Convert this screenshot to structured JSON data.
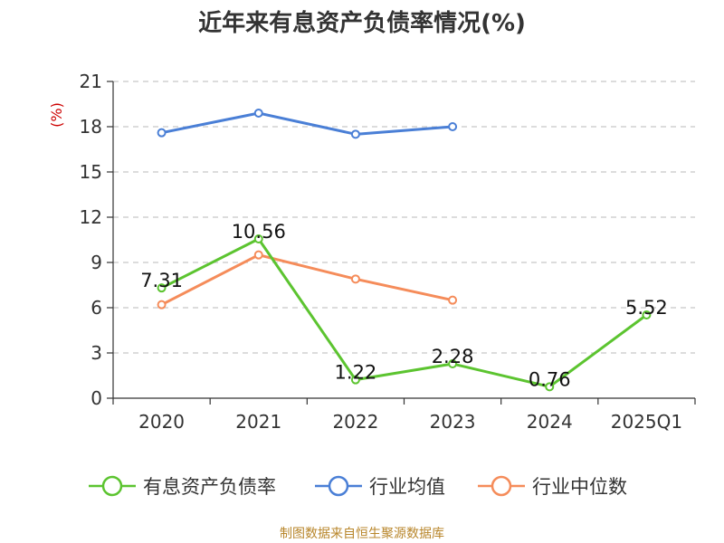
{
  "chart_data": {
    "type": "line",
    "title": "近年来有息资产负债率情况(%)",
    "ylabel": "(%)",
    "xlabel": "",
    "categories": [
      "2020",
      "2021",
      "2022",
      "2023",
      "2024",
      "2025Q1"
    ],
    "ylim": [
      0,
      21
    ],
    "yticks": [
      0,
      3,
      6,
      9,
      12,
      15,
      18,
      21
    ],
    "grid": "horizontal dashed",
    "legend_position": "bottom",
    "series": [
      {
        "name": "有息资产负债率",
        "color": "#5cc430",
        "values": [
          7.31,
          10.56,
          1.22,
          2.28,
          0.76,
          5.52
        ],
        "labels": [
          "7.31",
          "10.56",
          "1.22",
          "2.28",
          "0.76",
          "5.52"
        ]
      },
      {
        "name": "行业均值",
        "color": "#4a7fd6",
        "values": [
          17.6,
          18.9,
          17.5,
          18.0,
          null,
          null
        ]
      },
      {
        "name": "行业中位数",
        "color": "#f58c5a",
        "values": [
          6.2,
          9.5,
          7.9,
          6.5,
          null,
          null
        ]
      }
    ],
    "source": "制图数据来自恒生聚源数据库"
  }
}
